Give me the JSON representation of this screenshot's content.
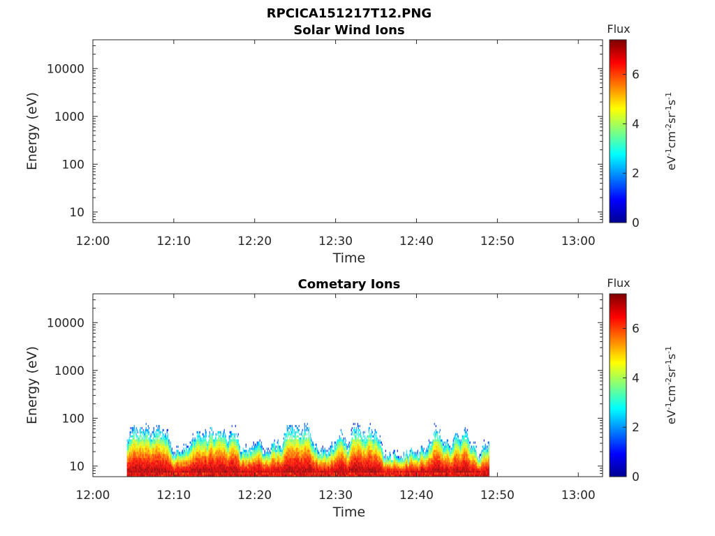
{
  "figure_title": "RPCICA151217T12.PNG",
  "colors": {
    "colormap": [
      "#00008f",
      "#0000ff",
      "#007fff",
      "#00ffff",
      "#7fff7f",
      "#ffff00",
      "#ff7f00",
      "#ff0000",
      "#7f0000"
    ]
  },
  "chart_data": [
    {
      "type": "heatmap",
      "title": "Solar Wind Ions",
      "xlabel": "Time",
      "ylabel": "Energy (eV)",
      "x_ticks": [
        "12:00",
        "12:10",
        "12:20",
        "12:30",
        "12:40",
        "12:50",
        "13:00"
      ],
      "x_range_minutes": [
        0,
        63
      ],
      "y_scale": "log",
      "y_ticks": [
        "10",
        "100",
        "1000",
        "10000"
      ],
      "y_range": [
        6,
        40000
      ],
      "colorbar": {
        "title": "Flux",
        "label_parts": [
          "eV",
          "-1",
          "cm",
          "-2",
          "sr",
          "-1",
          "s",
          "-1"
        ],
        "ticks": [
          "0",
          "2",
          "4",
          "6"
        ],
        "range": [
          0,
          7.4
        ]
      },
      "data_present": false
    },
    {
      "type": "heatmap",
      "title": "Cometary Ions",
      "xlabel": "Time",
      "ylabel": "Energy (eV)",
      "x_ticks": [
        "12:00",
        "12:10",
        "12:20",
        "12:30",
        "12:40",
        "12:50",
        "13:00"
      ],
      "x_range_minutes": [
        0,
        63
      ],
      "y_scale": "log",
      "y_ticks": [
        "10",
        "100",
        "1000",
        "10000"
      ],
      "y_range": [
        6,
        40000
      ],
      "colorbar": {
        "title": "Flux",
        "label_parts": [
          "eV",
          "-1",
          "cm",
          "-2",
          "sr",
          "-1",
          "s",
          "-1"
        ],
        "ticks": [
          "0",
          "2",
          "4",
          "6"
        ],
        "range": [
          0,
          7.4
        ]
      },
      "data_present": true,
      "data_start_minutes": 4.2,
      "data_end_minutes": 49.0,
      "energy_min": 6,
      "energy_max": 80,
      "peak_flux": 7.2
    }
  ]
}
